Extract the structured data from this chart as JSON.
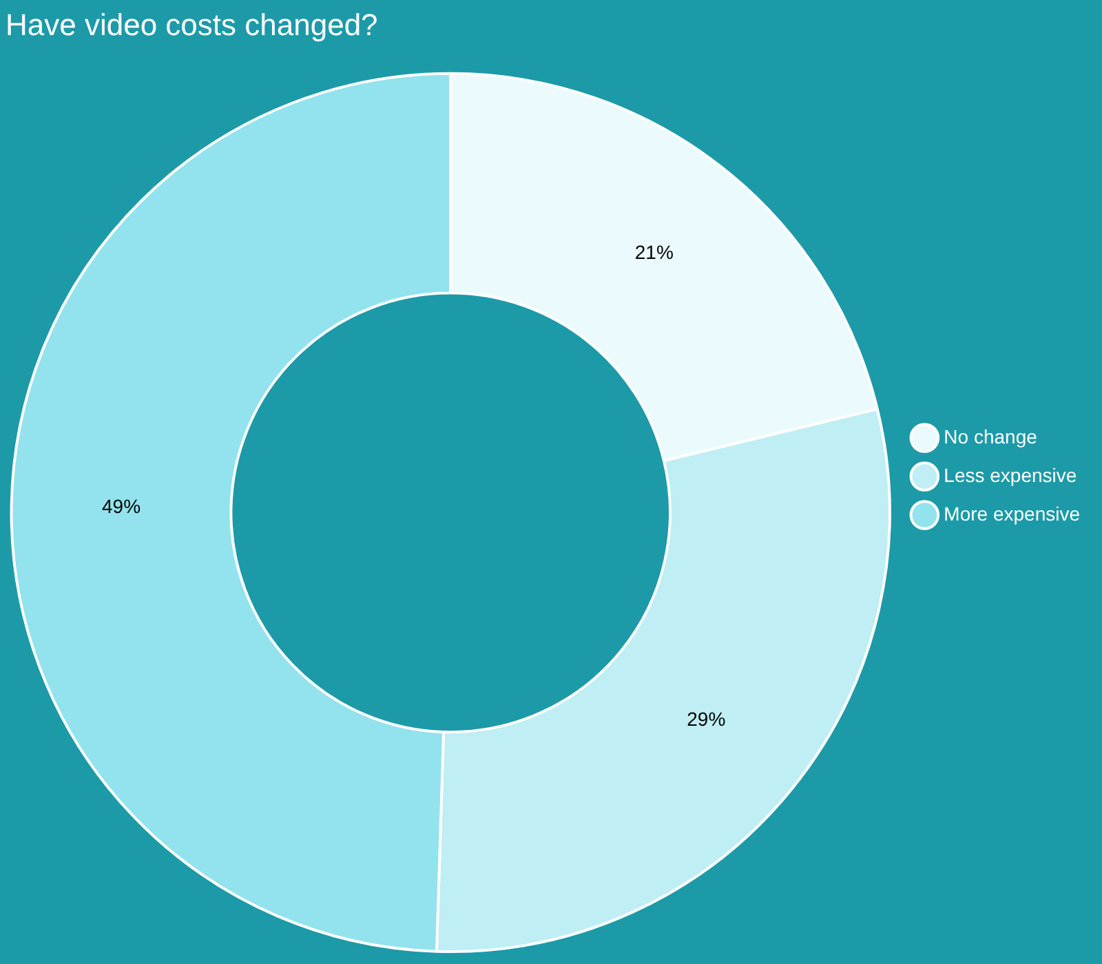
{
  "chart_data": {
    "type": "donut",
    "title": "Have video costs changed?",
    "categories": [
      "No change",
      "Less expensive",
      "More expensive"
    ],
    "values": [
      21,
      29,
      49
    ],
    "colors": [
      "#ebfafd",
      "#bfeef4",
      "#92e3ed"
    ],
    "value_labels": [
      "21%",
      "29%",
      "49%"
    ],
    "legend": "right"
  }
}
